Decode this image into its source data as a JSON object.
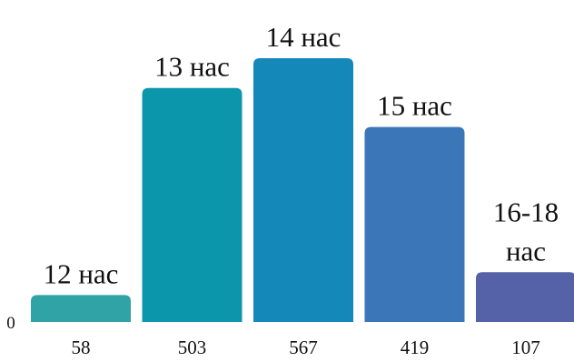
{
  "chart_data": {
    "type": "bar",
    "title": "",
    "xlabel": "",
    "ylabel": "",
    "ylim": [
      0,
      600
    ],
    "y_tick_labels": [
      "0"
    ],
    "grid": false,
    "legend": "none",
    "categories": [
      "58",
      "503",
      "567",
      "419",
      "107"
    ],
    "values": [
      58,
      503,
      567,
      419,
      107
    ],
    "bar_labels": [
      [
        "12 нас"
      ],
      [
        "13 нас"
      ],
      [
        "14  нас"
      ],
      [
        "15 нас"
      ],
      [
        "16-18",
        "нас"
      ]
    ],
    "colors": [
      "#2fa3a6",
      "#0b96ac",
      "#1488b8",
      "#3a76b8",
      "#5562a8"
    ]
  }
}
